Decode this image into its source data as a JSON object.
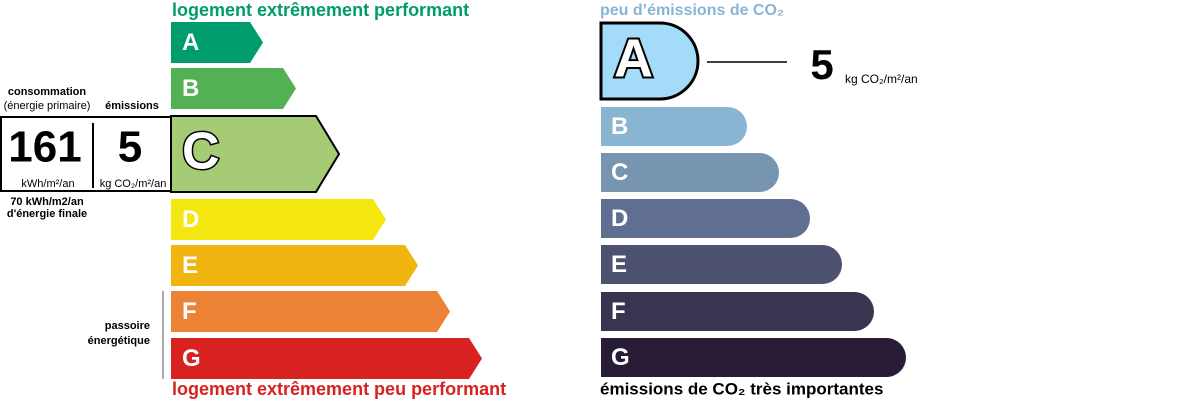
{
  "energy": {
    "top_label": "logement extrêmement performant",
    "bottom_label": "logement extrêmement peu performant",
    "classes": [
      "A",
      "B",
      "C",
      "D",
      "E",
      "F",
      "G"
    ],
    "colors": [
      "#009c6d",
      "#52b153",
      "#a5cc74",
      "#f4e70f",
      "#f0b50f",
      "#eb8235",
      "#d7221f"
    ],
    "consumption_label": "consommation",
    "consumption_sublabel": "(énergie primaire)",
    "consumption_value": "161",
    "consumption_unit": "kWh/m²/an",
    "emissions_label": "émissions",
    "emissions_value": "5",
    "emissions_unit": "kg CO₂/m²/an",
    "final_value": "70 kWh/m2/an",
    "final_label": "d'énergie finale",
    "passoire": [
      "passoire",
      "énergétique"
    ]
  },
  "climate": {
    "top_label": "peu d’émissions de CO₂",
    "bottom_label": "émissions de CO₂ très importantes",
    "classes": [
      "A",
      "B",
      "C",
      "D",
      "E",
      "F",
      "G"
    ],
    "colors": [
      "#a4dbf8",
      "#8ab5d2",
      "#7794b1",
      "#606f91",
      "#4d5271",
      "#393551",
      "#281b35"
    ],
    "value": "5",
    "unit": "kg CO₂/m²/an"
  }
}
